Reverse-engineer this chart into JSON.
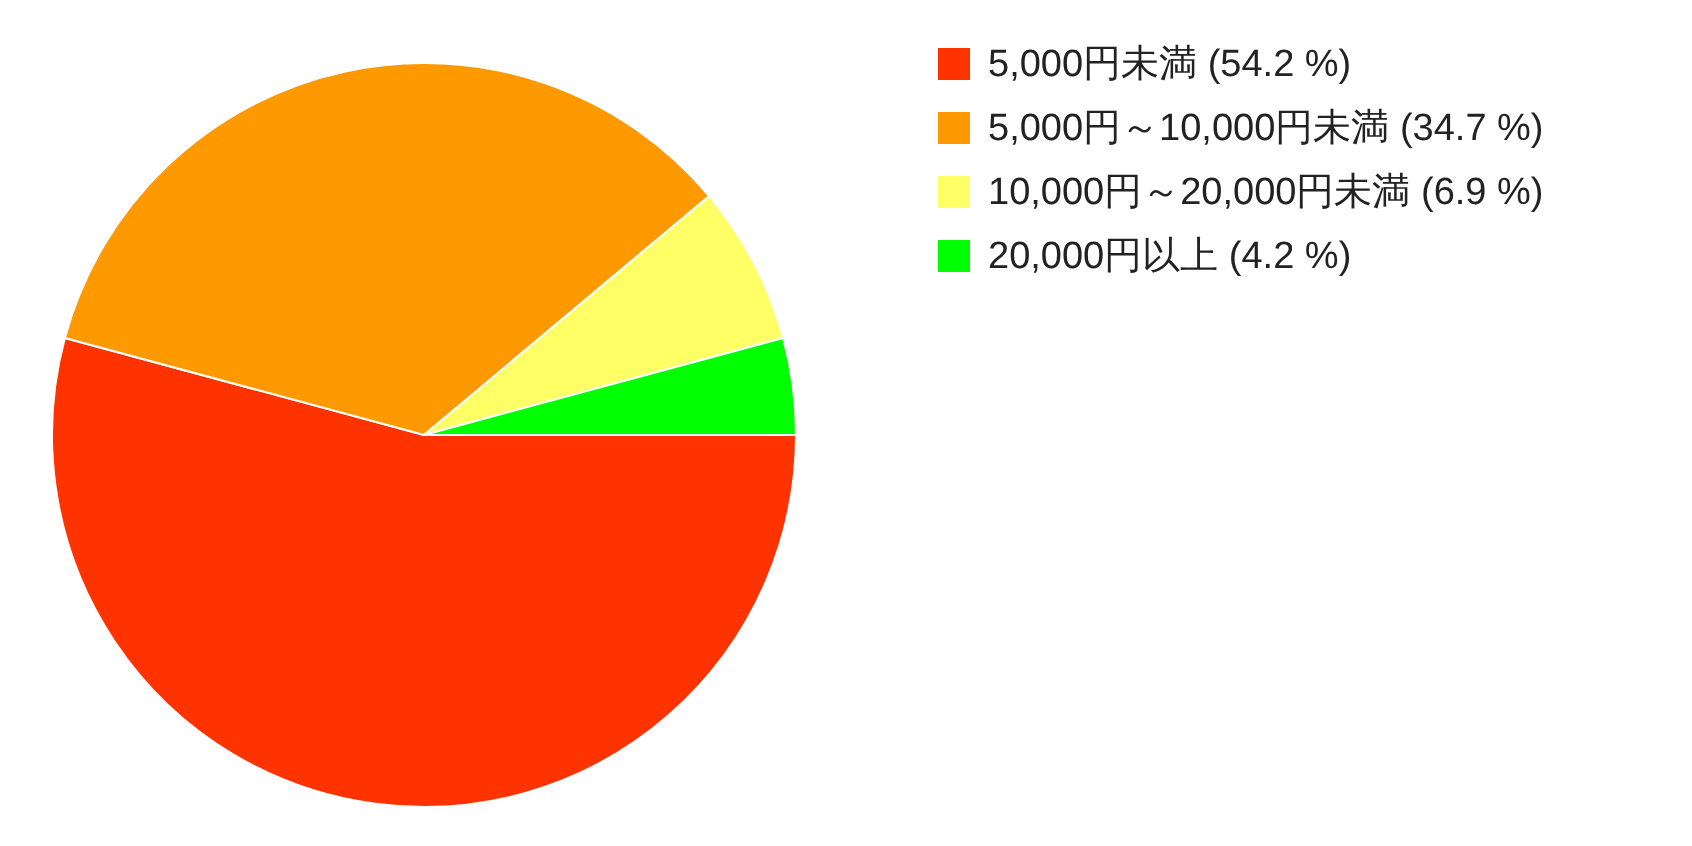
{
  "chart_data": {
    "type": "pie",
    "categories": [
      "5,000円未満",
      "5,000円～10,000円未満",
      "10,000円～20,000円未満",
      "20,000円以上"
    ],
    "values": [
      54.2,
      34.7,
      6.9,
      4.2
    ],
    "value_labels": [
      "(54.2 %)",
      "(34.7 %)",
      "(6.9 %)",
      "(4.2 %)"
    ],
    "colors": [
      "#ff3300",
      "#ff9900",
      "#ffff66",
      "#00ff00"
    ],
    "legend": "top right"
  }
}
